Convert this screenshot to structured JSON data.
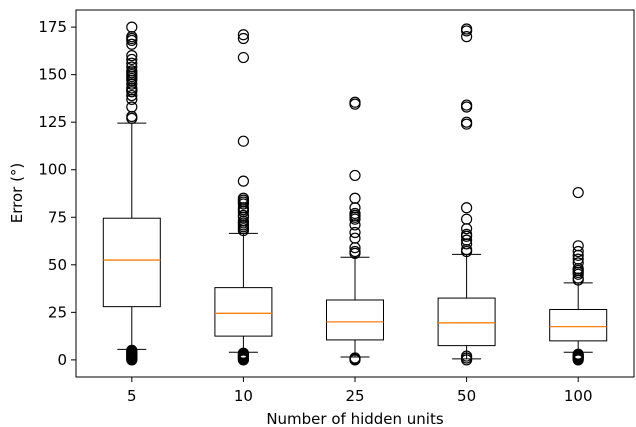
{
  "chart_data": {
    "type": "box",
    "xlabel": "Number of hidden units",
    "ylabel": "Error (°)",
    "ylim": [
      -9,
      184
    ],
    "yticks": [
      0,
      25,
      50,
      75,
      100,
      125,
      150,
      175
    ],
    "grid": false,
    "colors": {
      "box": "#000000",
      "median": "#ff7f0e",
      "flier": "#000000"
    },
    "categories": [
      "5",
      "10",
      "25",
      "50",
      "100"
    ],
    "boxes": [
      {
        "category": "5",
        "whisker_low": 5.5,
        "q1": 28,
        "median": 52.5,
        "q3": 74.5,
        "whisker_high": 124.5,
        "fliers": [
          0,
          0.5,
          1,
          1.5,
          2,
          2.5,
          3,
          3.5,
          4,
          4.5,
          5,
          127,
          128,
          133,
          137,
          139,
          141,
          142,
          143,
          145,
          147,
          148,
          149,
          150,
          151,
          152,
          154,
          156,
          158,
          160,
          166,
          168,
          169,
          170,
          175
        ]
      },
      {
        "category": "10",
        "whisker_low": 4,
        "q1": 12.5,
        "median": 24.5,
        "q3": 38,
        "whisker_high": 66.5,
        "fliers": [
          0,
          0.5,
          1,
          1.5,
          2,
          2.5,
          3,
          3.5,
          68,
          69,
          70,
          71,
          72,
          73,
          75,
          76,
          78,
          79,
          80,
          82,
          83,
          84,
          85,
          94,
          115,
          159,
          169,
          171
        ]
      },
      {
        "category": "25",
        "whisker_low": 1.5,
        "q1": 10.5,
        "median": 20,
        "q3": 31.5,
        "whisker_high": 54,
        "fliers": [
          0,
          0.5,
          1,
          56,
          57,
          59,
          64,
          67,
          71,
          74,
          75,
          76,
          77,
          80,
          85,
          97,
          134.5,
          135.5
        ]
      },
      {
        "category": "50",
        "whisker_low": 0.5,
        "q1": 7.5,
        "median": 19.5,
        "q3": 32.5,
        "whisker_high": 55.5,
        "fliers": [
          0,
          1,
          2,
          57,
          58,
          61,
          63,
          65,
          66,
          69,
          74,
          80,
          124,
          125,
          133,
          134,
          170,
          173,
          174
        ]
      },
      {
        "category": "100",
        "whisker_low": 4,
        "q1": 10,
        "median": 17.5,
        "q3": 26.5,
        "whisker_high": 40.5,
        "fliers": [
          0,
          0.5,
          1,
          1.5,
          2,
          2.5,
          3,
          42,
          43,
          45,
          46,
          47,
          48,
          51,
          53,
          55,
          57,
          60,
          88
        ]
      }
    ]
  }
}
